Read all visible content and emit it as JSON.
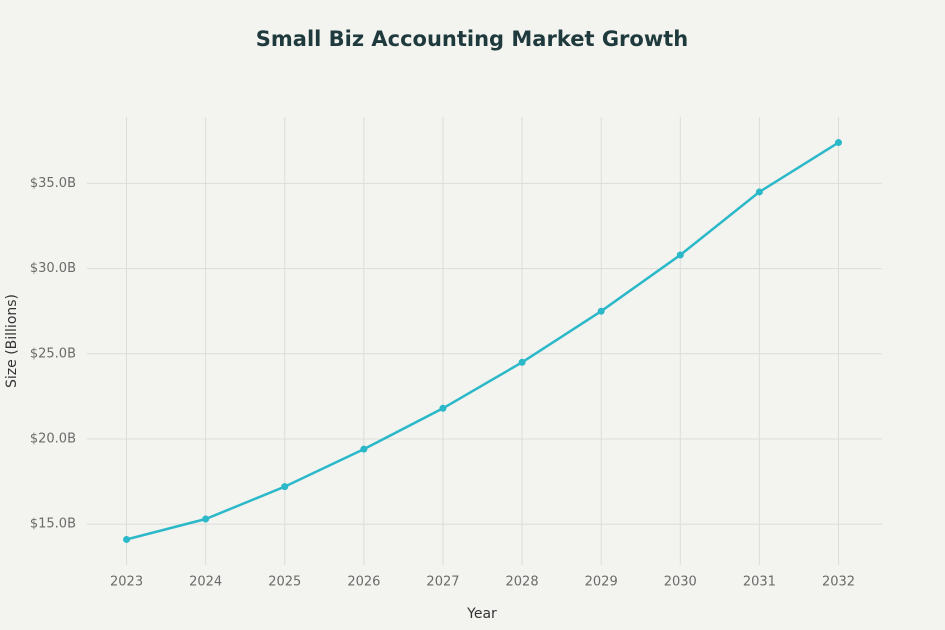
{
  "chart_data": {
    "type": "line",
    "title": "Small Biz Accounting Market Growth",
    "x_label": "Year",
    "y_label": "Size (Billions)",
    "x": [
      2023,
      2024,
      2025,
      2026,
      2027,
      2028,
      2029,
      2030,
      2031,
      2032
    ],
    "series": [
      {
        "color": "#2bb8c9",
        "values": [
          14.1,
          15.3,
          17.2,
          19.4,
          21.8,
          24.5,
          27.5,
          30.8,
          34.5,
          37.4
        ]
      }
    ],
    "xlim": [
      2022.5,
      2032.55
    ],
    "xticks": [
      2023,
      2024,
      2025,
      2026,
      2027,
      2028,
      2029,
      2030,
      2031,
      2032
    ],
    "ylim": [
      12.6,
      38.9
    ],
    "yticks": [
      {
        "value": 15,
        "label": "$15.0B"
      },
      {
        "value": 20,
        "label": "$20.0B"
      },
      {
        "value": 25,
        "label": "$25.0B"
      },
      {
        "value": 30,
        "label": "$30.0B"
      },
      {
        "value": 35,
        "label": "$35.0B"
      }
    ],
    "grid": true
  }
}
